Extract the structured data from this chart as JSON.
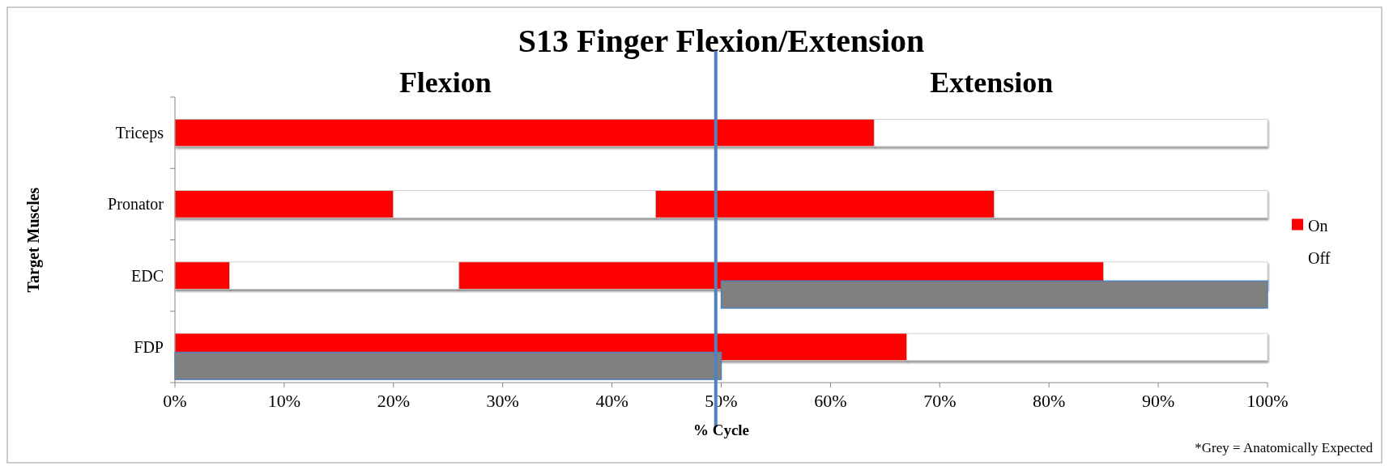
{
  "chart_data": {
    "type": "bar",
    "orientation": "horizontal",
    "title": "S13 Finger Flexion/Extension",
    "xlabel": "% Cycle",
    "ylabel": "Target Muscles",
    "categories": [
      "Triceps",
      "Pronator",
      "EDC",
      "FDP"
    ],
    "series": [
      {
        "name": "On",
        "color": "#ff0000",
        "base": [
          0,
          0,
          0,
          0
        ],
        "values": [
          64,
          20,
          5,
          67
        ]
      },
      {
        "name": "Off",
        "color": "#ffffff",
        "base": [
          64,
          20,
          5,
          67
        ],
        "values": [
          36,
          24,
          21,
          33
        ]
      },
      {
        "color": "#ff0000",
        "base": [
          null,
          44,
          26,
          null
        ],
        "values": [
          null,
          31,
          59,
          null
        ]
      },
      {
        "color": "#ffffff",
        "base": [
          null,
          75,
          85,
          null
        ],
        "values": [
          null,
          25,
          15,
          null
        ]
      },
      {
        "color": "#808080",
        "base": [
          null,
          null,
          50,
          0
        ],
        "values": [
          null,
          null,
          50,
          50
        ]
      }
    ],
    "xlim": [
      0,
      100
    ],
    "xticks": [
      {
        "value": 0,
        "label": "0%"
      },
      {
        "value": 10,
        "label": "10%"
      },
      {
        "value": 20,
        "label": "20%"
      },
      {
        "value": 30,
        "label": "30%"
      },
      {
        "value": 40,
        "label": "40%"
      },
      {
        "value": 50,
        "label": "50%"
      },
      {
        "value": 60,
        "label": "60%"
      },
      {
        "value": 70,
        "label": "70%"
      },
      {
        "value": 80,
        "label": "80%"
      },
      {
        "value": 90,
        "label": "90%"
      },
      {
        "value": 100,
        "label": "100%"
      }
    ],
    "ref_lines": [
      {
        "axis": "x",
        "value": 49.5,
        "color": "#4f81bd"
      }
    ],
    "annotations": [
      "Flexion",
      "Extension",
      "*Grey = Anatomically Expected"
    ],
    "legend": "right",
    "grid": false
  }
}
